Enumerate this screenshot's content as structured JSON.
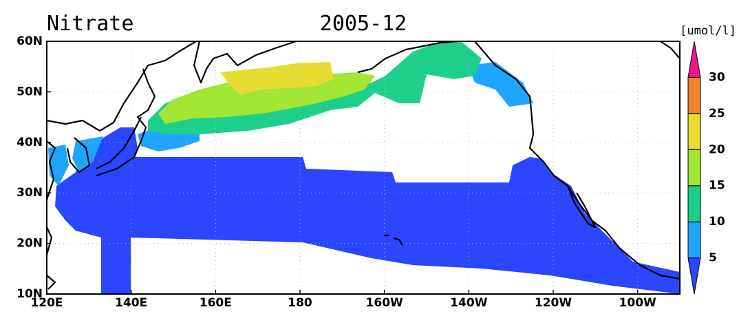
{
  "title": "Nitrate",
  "period": "2005-12",
  "units": "[umol/l]",
  "map": {
    "lon_labels": [
      "120E",
      "140E",
      "160E",
      "180",
      "160W",
      "140W",
      "120W",
      "100W"
    ],
    "lat_labels": [
      "10N",
      "20N",
      "30N",
      "40N",
      "50N",
      "60N"
    ]
  },
  "colorbar": {
    "levels": [
      5,
      10,
      15,
      20,
      25,
      30
    ],
    "colors": [
      "#2a46ff",
      "#1ea5ff",
      "#1ecf8c",
      "#a0e632",
      "#e6dc32",
      "#f0822d",
      "#f0148c"
    ]
  }
}
